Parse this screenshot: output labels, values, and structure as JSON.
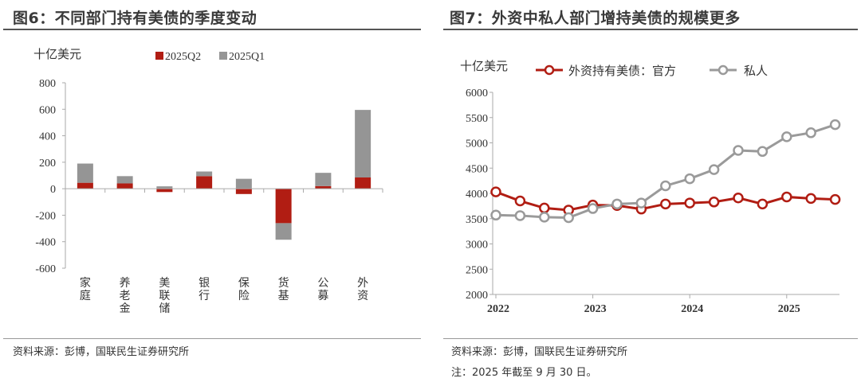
{
  "left": {
    "title": "图6：不同部门持有美债的季度变动",
    "source": "资料来源：彭博，国联民生证券研究所"
  },
  "right": {
    "title": "图7：外资中私人部门增持美债的规模更多",
    "source": "资料来源：彭博，国联民生证券研究所",
    "note": "注：2025 年截至 9 月 30 日。"
  },
  "chart_data": [
    {
      "type": "bar",
      "stacked": true,
      "unit_label": "十亿美元",
      "categories": [
        "家庭",
        "养老金",
        "美联储",
        "银行",
        "保险",
        "货基",
        "公募",
        "外资"
      ],
      "series": [
        {
          "name": "2025Q2",
          "color": "#b11d13",
          "values": [
            45,
            40,
            -25,
            95,
            -40,
            -260,
            20,
            85
          ]
        },
        {
          "name": "2025Q1",
          "color": "#959595",
          "values": [
            145,
            55,
            18,
            35,
            75,
            -125,
            100,
            510
          ]
        }
      ],
      "ylim": [
        -600,
        800
      ],
      "yticks": [
        "800",
        "600",
        "400",
        "200",
        "0",
        "-200",
        "-400",
        "-600"
      ],
      "legend": "top",
      "grid": false
    },
    {
      "type": "line",
      "unit_label": "十亿美元",
      "x": [
        "2022Q1",
        "2022Q2",
        "2022Q3",
        "2022Q4",
        "2023Q1",
        "2023Q2",
        "2023Q3",
        "2023Q4",
        "2024Q1",
        "2024Q2",
        "2024Q3",
        "2024Q4",
        "2025Q1",
        "2025Q2",
        "2025Q3"
      ],
      "xticks": [
        "2022",
        "2023",
        "2024",
        "2025"
      ],
      "series": [
        {
          "name": "外资持有美债：官方",
          "color": "#b11d13",
          "values": [
            4030,
            3850,
            3710,
            3670,
            3770,
            3760,
            3690,
            3790,
            3810,
            3830,
            3910,
            3790,
            3930,
            3900,
            3880
          ]
        },
        {
          "name": "私人",
          "color": "#9a9a9a",
          "values": [
            3570,
            3560,
            3530,
            3520,
            3700,
            3790,
            3810,
            4150,
            4290,
            4470,
            4850,
            4830,
            5120,
            5200,
            5360
          ]
        }
      ],
      "ylim": [
        2000,
        6000
      ],
      "yticks": [
        "6000",
        "5500",
        "5000",
        "4500",
        "4000",
        "3500",
        "3000",
        "2500",
        "2000"
      ],
      "legend": "top",
      "grid": false
    }
  ]
}
